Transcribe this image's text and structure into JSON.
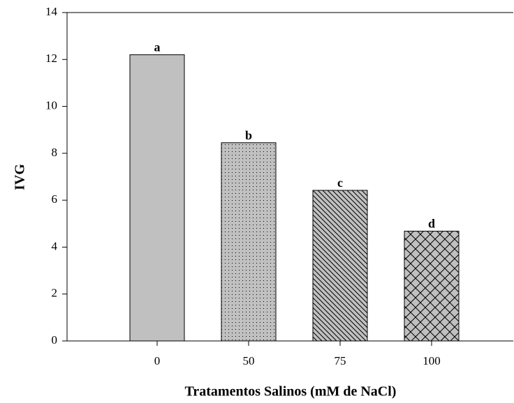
{
  "chart_data": {
    "type": "bar",
    "xlabel": "Tratamentos Salinos (mM de NaCl)",
    "ylabel": "IVG",
    "categories": [
      "0",
      "50",
      "75",
      "100"
    ],
    "values": [
      12.2,
      8.45,
      6.42,
      4.68
    ],
    "annotations": [
      "a",
      "b",
      "c",
      "d"
    ],
    "color": "#c0c0c0",
    "patterns": [
      "solid",
      "dots",
      "diagonal",
      "crosshatch"
    ],
    "ylim": [
      0,
      14
    ],
    "yticks": [
      0,
      2,
      4,
      6,
      8,
      10,
      12,
      14
    ],
    "grid": false
  }
}
